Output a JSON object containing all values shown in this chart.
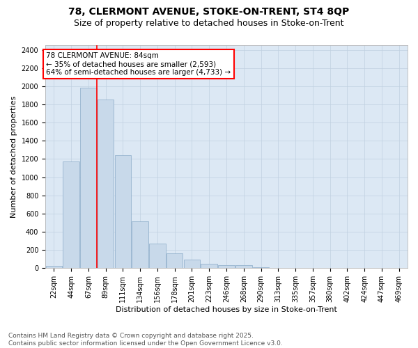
{
  "title1": "78, CLERMONT AVENUE, STOKE-ON-TRENT, ST4 8QP",
  "title2": "Size of property relative to detached houses in Stoke-on-Trent",
  "xlabel": "Distribution of detached houses by size in Stoke-on-Trent",
  "ylabel": "Number of detached properties",
  "categories": [
    "22sqm",
    "44sqm",
    "67sqm",
    "89sqm",
    "111sqm",
    "134sqm",
    "156sqm",
    "178sqm",
    "201sqm",
    "223sqm",
    "246sqm",
    "268sqm",
    "290sqm",
    "313sqm",
    "335sqm",
    "357sqm",
    "380sqm",
    "402sqm",
    "424sqm",
    "447sqm",
    "469sqm"
  ],
  "values": [
    25,
    1170,
    1980,
    1850,
    1245,
    515,
    270,
    160,
    95,
    45,
    35,
    30,
    10,
    5,
    2,
    1,
    1,
    0,
    0,
    0,
    0
  ],
  "bar_color": "#c8d9ea",
  "bar_edge_color": "#8aaac8",
  "vline_position": 2.5,
  "vline_color": "red",
  "annotation_text": "78 CLERMONT AVENUE: 84sqm\n← 35% of detached houses are smaller (2,593)\n64% of semi-detached houses are larger (4,733) →",
  "ylim_max": 2450,
  "yticks": [
    0,
    200,
    400,
    600,
    800,
    1000,
    1200,
    1400,
    1600,
    1800,
    2000,
    2200,
    2400
  ],
  "grid_color": "#c0d0e0",
  "bg_color": "#dce8f4",
  "footnote": "Contains HM Land Registry data © Crown copyright and database right 2025.\nContains public sector information licensed under the Open Government Licence v3.0.",
  "title1_fontsize": 10,
  "title2_fontsize": 9,
  "ylabel_fontsize": 8,
  "xlabel_fontsize": 8,
  "tick_fontsize": 7,
  "annotation_fontsize": 7.5,
  "footnote_fontsize": 6.5
}
